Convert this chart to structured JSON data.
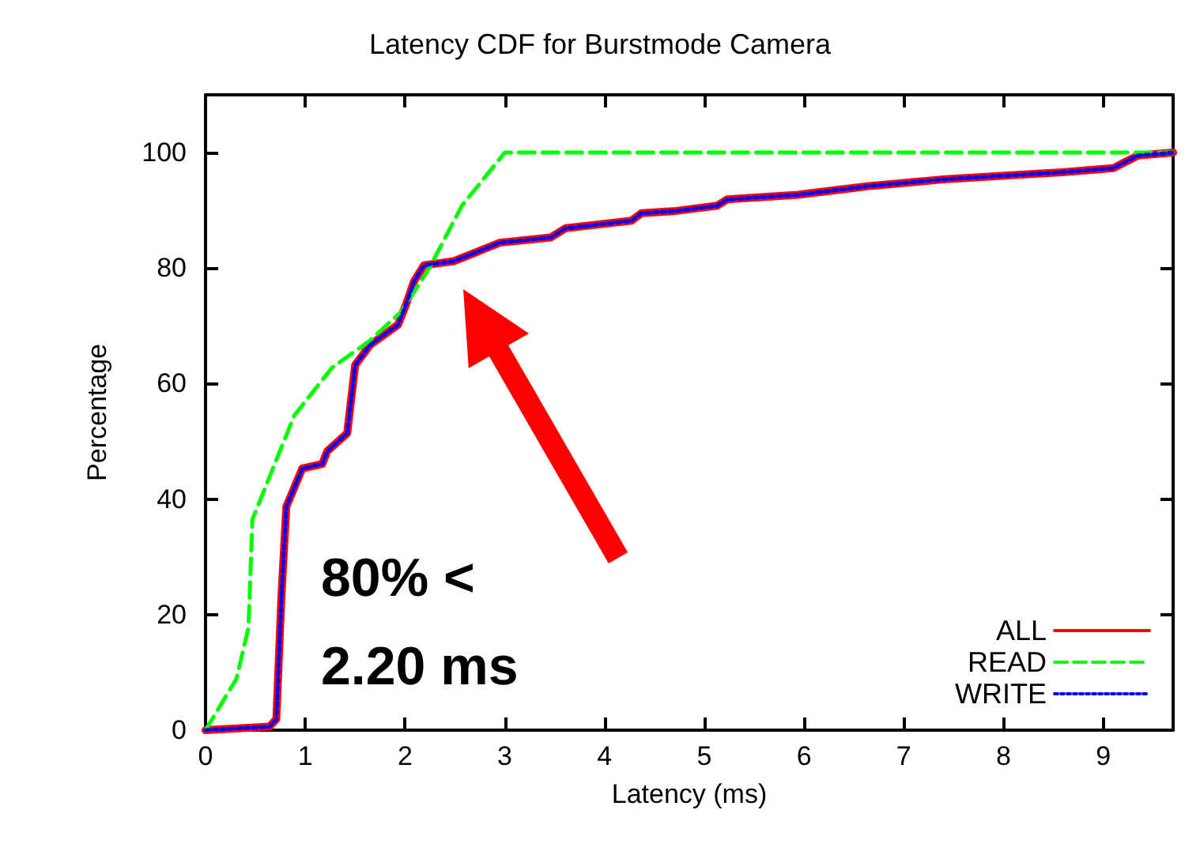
{
  "chart_data": {
    "type": "line",
    "title": "Latency CDF for Burstmode Camera",
    "xlabel": "Latency (ms)",
    "ylabel": "Percentage",
    "annotations": [
      "80% < 2.20 ms"
    ],
    "xlim": [
      0,
      9.7
    ],
    "xticks": [
      0,
      1,
      2,
      3,
      4,
      5,
      6,
      7,
      8,
      9
    ],
    "ylim": [
      0,
      110
    ],
    "yticks": [
      0,
      20,
      40,
      60,
      80,
      100
    ],
    "grid": false,
    "legend": "bottom right",
    "marker": "none",
    "series": [
      {
        "name": "ALL",
        "color": "#ff0000",
        "line_style": "solid",
        "x": [
          0,
          0.64,
          0.71,
          0.76,
          0.81,
          0.97,
          1.17,
          1.22,
          1.42,
          1.5,
          1.65,
          1.93,
          2.01,
          2.09,
          2.19,
          2.49,
          2.95,
          3.46,
          3.61,
          4.27,
          4.37,
          4.72,
          5.13,
          5.23,
          5.94,
          6.65,
          7.42,
          8.59,
          9.1,
          9.2,
          9.35,
          9.7
        ],
        "values": [
          0,
          0.6,
          1.9,
          22.9,
          38.7,
          45.3,
          46.1,
          48.3,
          51.4,
          63.2,
          66.7,
          70.2,
          73.7,
          77.7,
          80.5,
          81.2,
          84.4,
          85.3,
          86.9,
          88.2,
          89.5,
          89.9,
          90.8,
          91.9,
          92.7,
          94.2,
          95.4,
          96.6,
          97.3,
          98.2,
          99.5,
          100
        ]
      },
      {
        "name": "READ",
        "color": "#00ff00",
        "line_style": "dashed",
        "x": [
          0,
          0.31,
          0.43,
          0.47,
          0.89,
          1.27,
          1.63,
          1.96,
          2.24,
          2.57,
          3.0,
          9.7
        ],
        "values": [
          0,
          8.9,
          17.7,
          36.5,
          54.5,
          62.8,
          67.2,
          72.4,
          79.9,
          90.8,
          100,
          100
        ]
      },
      {
        "name": "WRITE",
        "color": "#0000ff",
        "line_style": "dotted",
        "x": [
          0,
          0.64,
          0.71,
          0.76,
          0.81,
          0.97,
          1.17,
          1.22,
          1.42,
          1.5,
          1.65,
          1.93,
          2.01,
          2.09,
          2.19,
          2.49,
          2.95,
          3.46,
          3.61,
          4.27,
          4.37,
          4.72,
          5.13,
          5.23,
          5.94,
          6.65,
          7.42,
          8.59,
          9.1,
          9.2,
          9.35,
          9.7
        ],
        "values": [
          0,
          0.6,
          1.9,
          22.9,
          38.7,
          45.3,
          46.1,
          48.3,
          51.4,
          63.2,
          66.7,
          70.2,
          73.7,
          77.7,
          80.5,
          81.2,
          84.4,
          85.3,
          86.9,
          88.2,
          89.5,
          89.9,
          90.8,
          91.9,
          92.7,
          94.2,
          95.4,
          96.6,
          97.3,
          98.2,
          99.5,
          100
        ]
      }
    ]
  }
}
